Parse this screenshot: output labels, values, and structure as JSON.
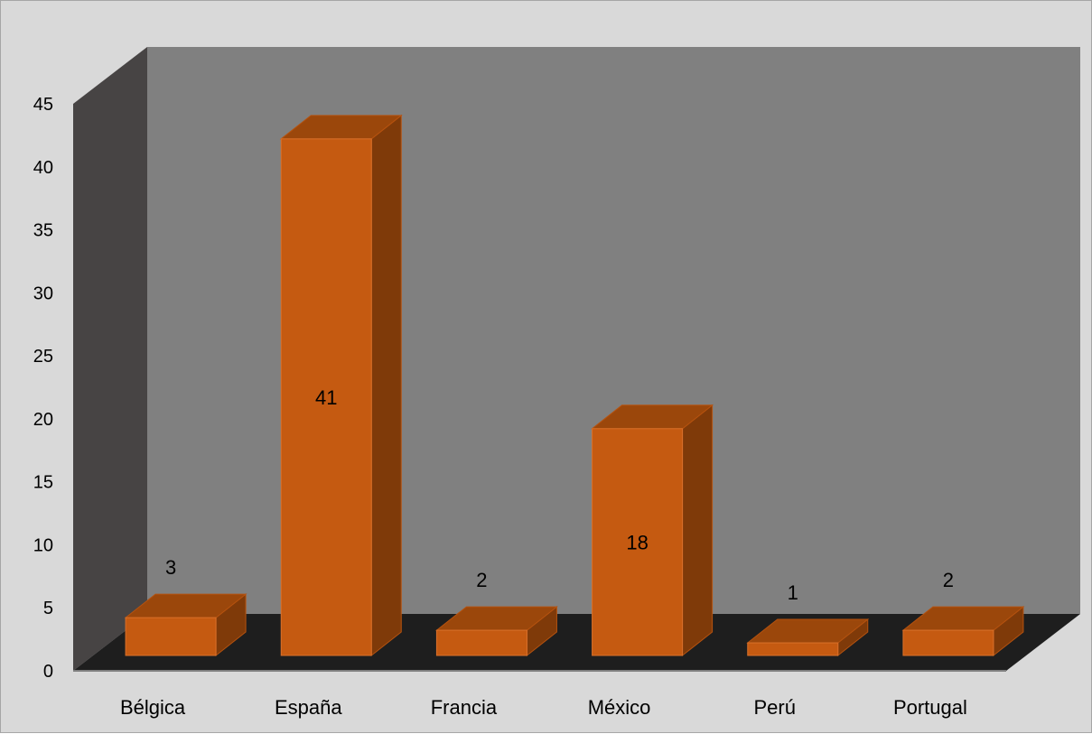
{
  "chart_data": {
    "type": "bar",
    "categories": [
      "Bélgica",
      "España",
      "Francia",
      "México",
      "Perú",
      "Portugal"
    ],
    "values": [
      3,
      41,
      2,
      18,
      1,
      2
    ],
    "data_labels": [
      "3",
      "41",
      "2",
      "18",
      "1",
      "2"
    ],
    "yticks": [
      "0",
      "5",
      "10",
      "15",
      "20",
      "25",
      "30",
      "35",
      "40",
      "45"
    ],
    "ylim": [
      0,
      45
    ],
    "grid": false,
    "legend": "none",
    "style": "3d-column",
    "colors": {
      "bar_front": "#c55a11",
      "bar_top": "#9b470b",
      "bar_side": "#7f3a09",
      "back_wall": "#808080",
      "side_wall": "#474444",
      "floor": "#1e1e1e",
      "chart_area": "#d9d9d9"
    }
  }
}
